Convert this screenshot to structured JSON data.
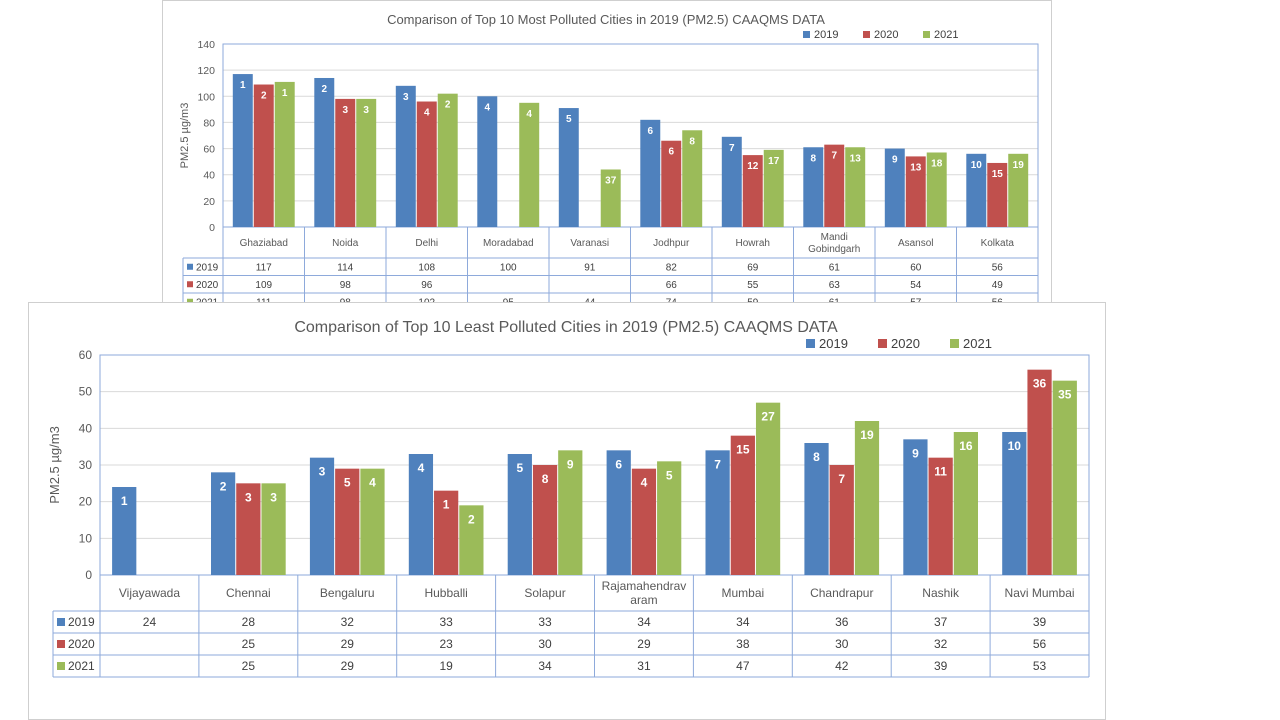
{
  "chart_data": [
    {
      "type": "bar",
      "title": "Comparison of Top 10 Most Polluted Cities in 2019 (PM2.5) CAAQMS DATA",
      "ylabel": "PM2.5  µg/m3",
      "xlabel": "",
      "ylim": [
        0,
        140
      ],
      "yticks": [
        0,
        20,
        40,
        60,
        80,
        100,
        120,
        140
      ],
      "grid": true,
      "legend": "top-right",
      "categories": [
        "Ghaziabad",
        "Noida",
        "Delhi",
        "Moradabad",
        "Varanasi",
        "Jodhpur",
        "Howrah",
        "Mandi Gobindgarh",
        "Asansol",
        "Kolkata"
      ],
      "category_lines": [
        [
          "Ghaziabad"
        ],
        [
          "Noida"
        ],
        [
          "Delhi"
        ],
        [
          "Moradabad"
        ],
        [
          "Varanasi"
        ],
        [
          "Jodhpur"
        ],
        [
          "Howrah"
        ],
        [
          "Mandi",
          "Gobindgarh"
        ],
        [
          "Asansol"
        ],
        [
          "Kolkata"
        ]
      ],
      "series": [
        {
          "name": "2019",
          "color": "#4f81bd",
          "values": [
            117,
            114,
            108,
            100,
            91,
            82,
            69,
            61,
            60,
            56
          ],
          "ranks": [
            1,
            2,
            3,
            4,
            5,
            6,
            7,
            8,
            9,
            10
          ]
        },
        {
          "name": "2020",
          "color": "#c0504d",
          "values": [
            109,
            98,
            96,
            null,
            null,
            66,
            55,
            63,
            54,
            49
          ],
          "ranks": [
            2,
            3,
            4,
            null,
            null,
            6,
            12,
            7,
            13,
            15
          ]
        },
        {
          "name": "2021",
          "color": "#9bbb59",
          "values": [
            111,
            98,
            102,
            95,
            44,
            74,
            59,
            61,
            57,
            56
          ],
          "ranks": [
            1,
            3,
            2,
            4,
            37,
            8,
            17,
            13,
            18,
            19
          ]
        }
      ]
    },
    {
      "type": "bar",
      "title": "Comparison of Top 10 Least Polluted Cities in 2019 (PM2.5) CAAQMS DATA",
      "ylabel": "PM2.5  µg/m3",
      "xlabel": "",
      "ylim": [
        0,
        60
      ],
      "yticks": [
        0,
        10,
        20,
        30,
        40,
        50,
        60
      ],
      "grid": true,
      "legend": "top-right",
      "categories": [
        "Vijayawada",
        "Chennai",
        "Bengaluru",
        "Hubballi",
        "Solapur",
        "Rajamahendravaram",
        "Mumbai",
        "Chandrapur",
        "Nashik",
        "Navi Mumbai"
      ],
      "category_lines": [
        [
          "Vijayawada"
        ],
        [
          "Chennai"
        ],
        [
          "Bengaluru"
        ],
        [
          "Hubballi"
        ],
        [
          "Solapur"
        ],
        [
          "Rajamahendrav",
          "aram"
        ],
        [
          "Mumbai"
        ],
        [
          "Chandrapur"
        ],
        [
          "Nashik"
        ],
        [
          "Navi Mumbai"
        ]
      ],
      "series": [
        {
          "name": "2019",
          "color": "#4f81bd",
          "values": [
            24,
            28,
            32,
            33,
            33,
            34,
            34,
            36,
            37,
            39
          ],
          "ranks": [
            1,
            2,
            3,
            4,
            5,
            6,
            7,
            8,
            9,
            10
          ]
        },
        {
          "name": "2020",
          "color": "#c0504d",
          "values": [
            null,
            25,
            29,
            23,
            30,
            29,
            38,
            30,
            32,
            56
          ],
          "ranks": [
            null,
            3,
            5,
            1,
            8,
            4,
            15,
            7,
            11,
            36
          ]
        },
        {
          "name": "2021",
          "color": "#9bbb59",
          "values": [
            null,
            25,
            29,
            19,
            34,
            31,
            47,
            42,
            39,
            53
          ],
          "ranks": [
            null,
            3,
            4,
            2,
            9,
            5,
            27,
            19,
            16,
            35
          ]
        }
      ]
    }
  ]
}
